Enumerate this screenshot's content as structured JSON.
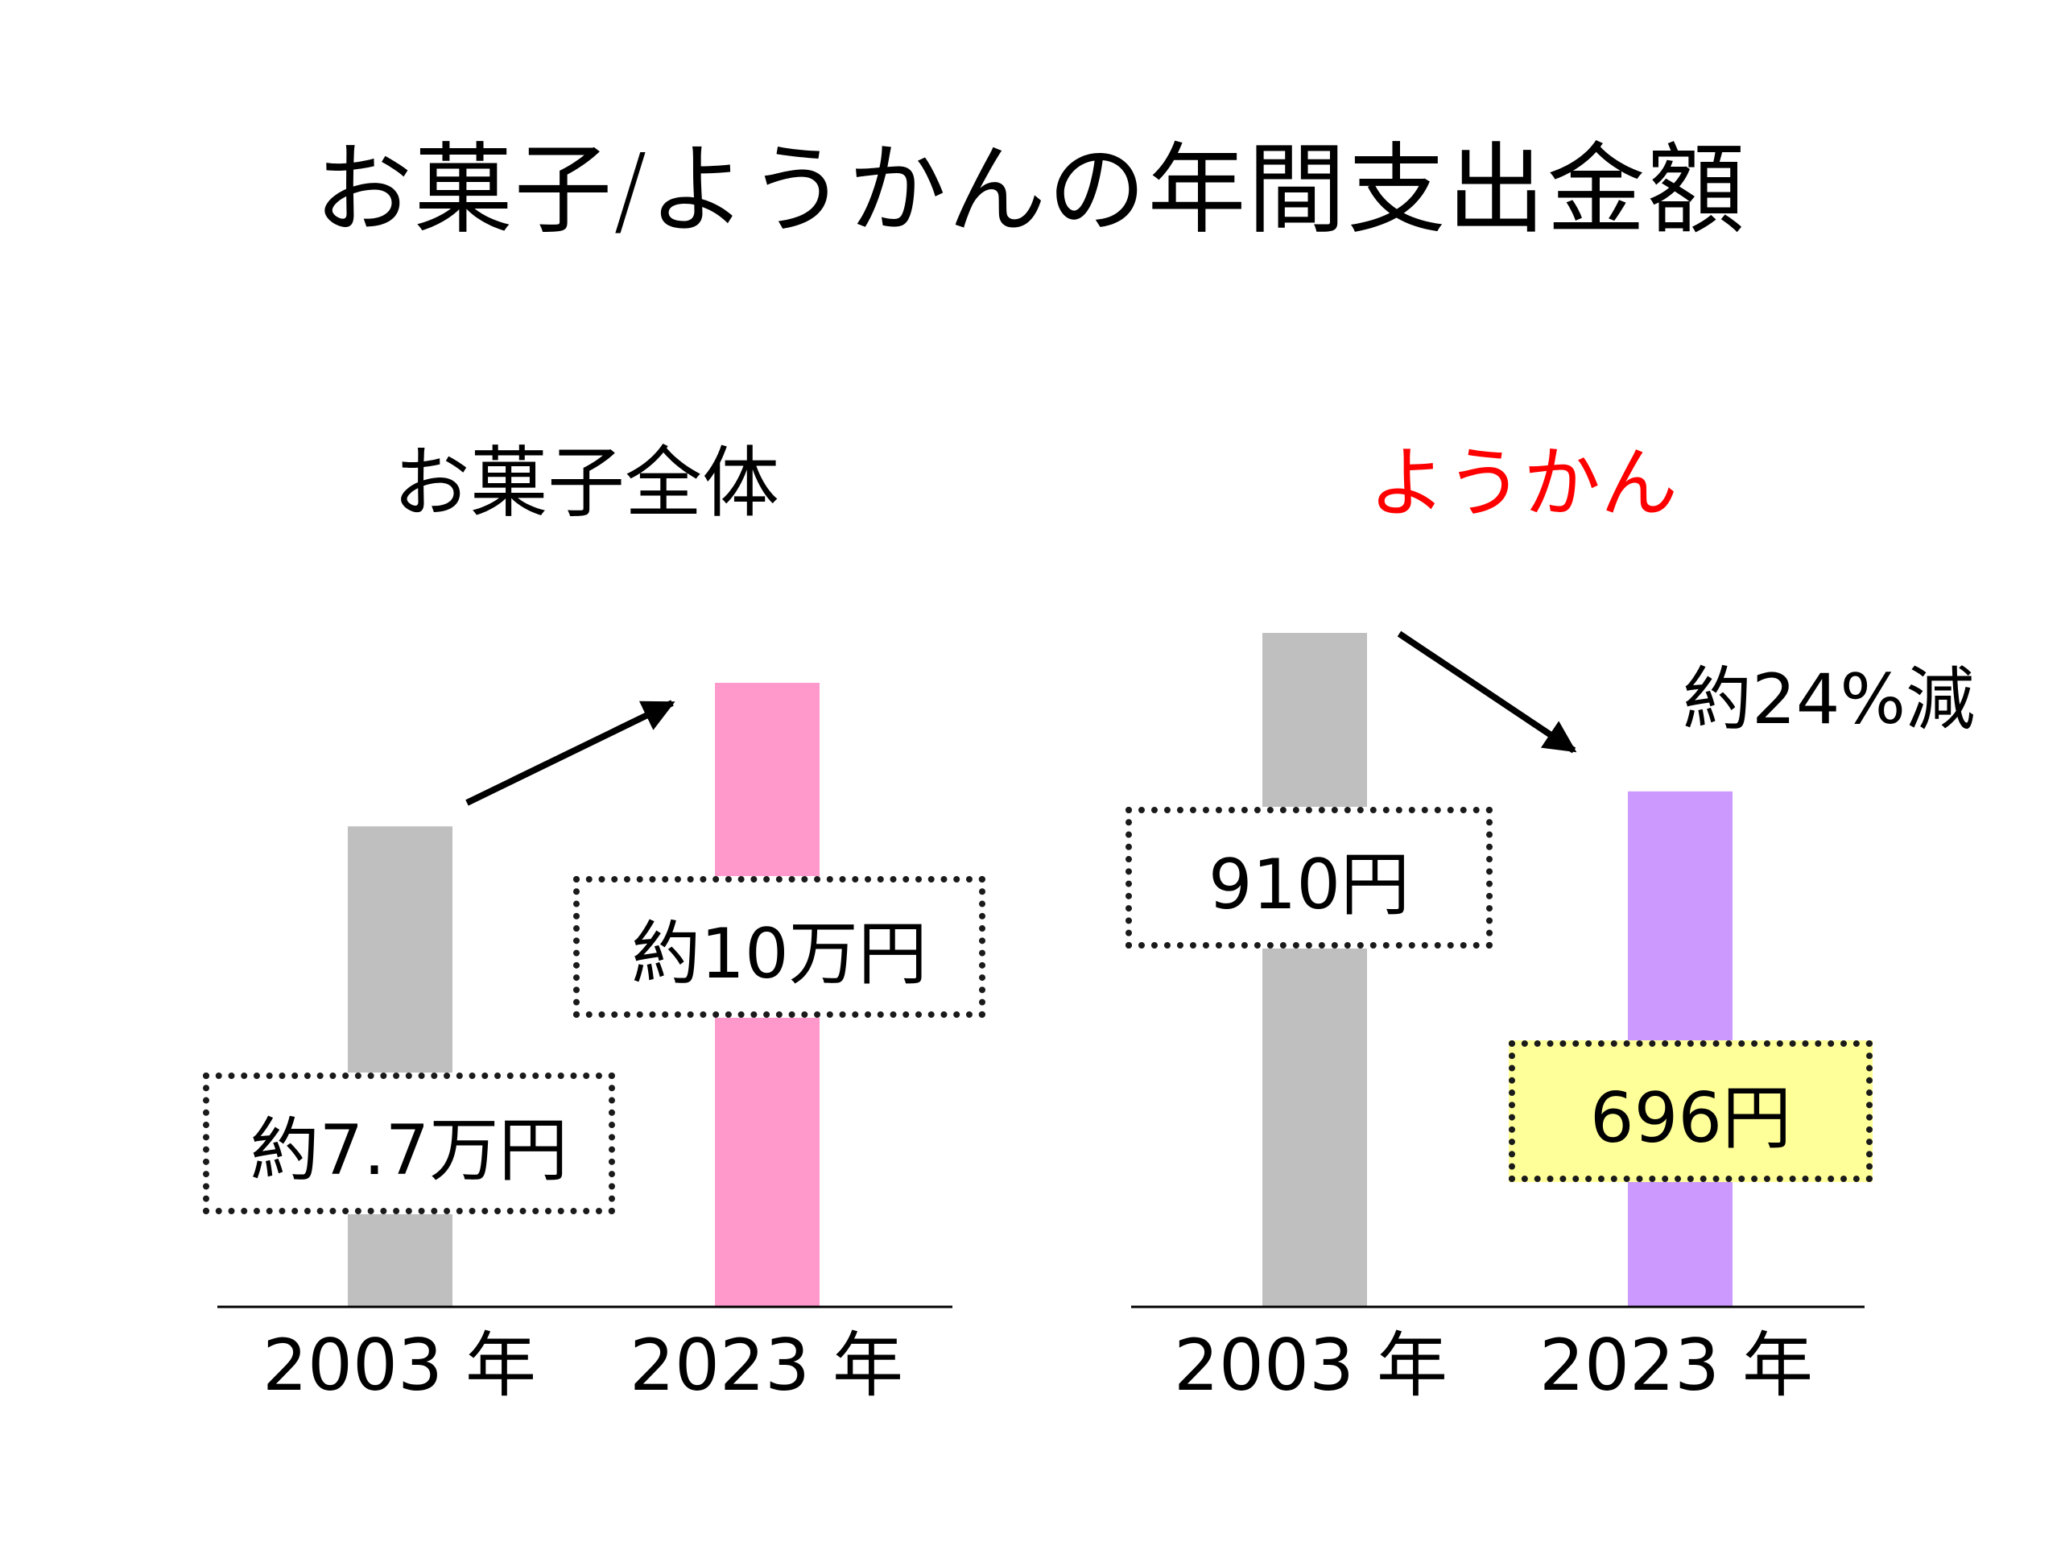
{
  "title": "お菓子/ようかんの年間支出金額",
  "chart_data": [
    {
      "type": "bar",
      "title": "お菓子全体",
      "title_color": "#000000",
      "categories": [
        "2003 年",
        "2023 年"
      ],
      "values": [
        77000,
        100000
      ],
      "colors": [
        "#bfbfbf",
        "#ff99cc"
      ],
      "value_labels": [
        "約7.7万円",
        "約10万円"
      ],
      "ylim": [
        0,
        108000
      ],
      "trend": "up"
    },
    {
      "type": "bar",
      "title": "ようかん",
      "title_color": "#ff0000",
      "categories": [
        "2003 年",
        "2023 年"
      ],
      "values": [
        910,
        696
      ],
      "colors": [
        "#bfbfbf",
        "#cc99ff"
      ],
      "value_labels": [
        "910円",
        "696円"
      ],
      "ylim": [
        0,
        910
      ],
      "trend": "down",
      "change_label": "約24%減"
    }
  ]
}
